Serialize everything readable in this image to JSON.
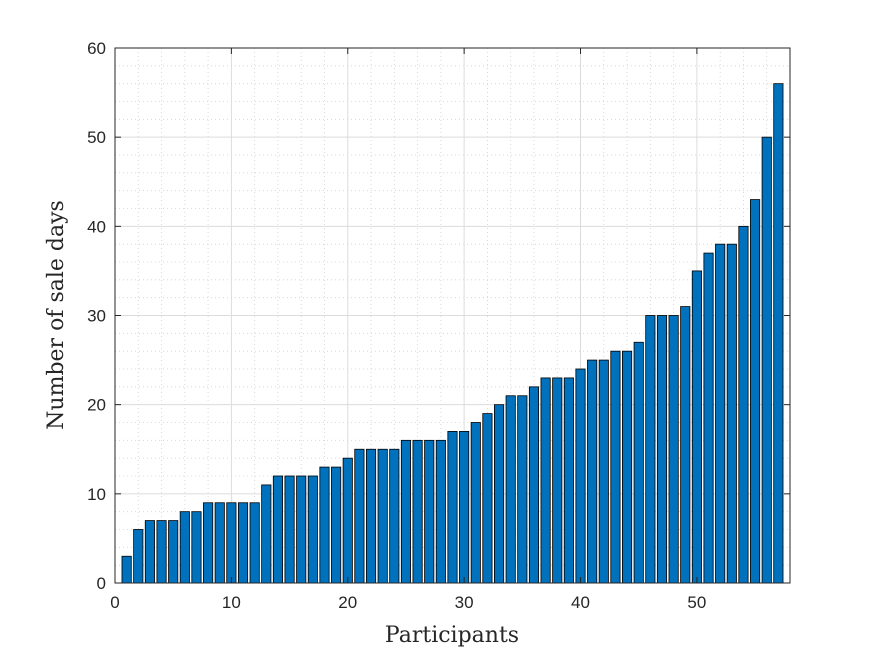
{
  "chart_data": {
    "type": "bar",
    "title": "",
    "xlabel": "Participants",
    "ylabel": "Number of sale days",
    "xlim": [
      0,
      58
    ],
    "ylim": [
      0,
      60
    ],
    "xticks": [
      0,
      10,
      20,
      30,
      40,
      50
    ],
    "yticks": [
      0,
      10,
      20,
      30,
      40,
      50,
      60
    ],
    "grid": true,
    "minor_grid": true,
    "bar_color": "#0072BD",
    "bar_edge_color": "#000000",
    "x": [
      1,
      2,
      3,
      4,
      5,
      6,
      7,
      8,
      9,
      10,
      11,
      12,
      13,
      14,
      15,
      16,
      17,
      18,
      19,
      20,
      21,
      22,
      23,
      24,
      25,
      26,
      27,
      28,
      29,
      30,
      31,
      32,
      33,
      34,
      35,
      36,
      37,
      38,
      39,
      40,
      41,
      42,
      43,
      44,
      45,
      46,
      47,
      48,
      49,
      50,
      51,
      52,
      53,
      54,
      55,
      56,
      57
    ],
    "values": [
      3,
      6,
      7,
      7,
      7,
      8,
      8,
      9,
      9,
      9,
      9,
      9,
      11,
      12,
      12,
      12,
      12,
      13,
      13,
      14,
      15,
      15,
      15,
      15,
      16,
      16,
      16,
      16,
      17,
      17,
      18,
      19,
      20,
      21,
      21,
      22,
      23,
      23,
      23,
      24,
      25,
      25,
      26,
      26,
      27,
      30,
      30,
      30,
      31,
      35,
      37,
      38,
      38,
      40,
      43,
      50,
      56
    ]
  }
}
